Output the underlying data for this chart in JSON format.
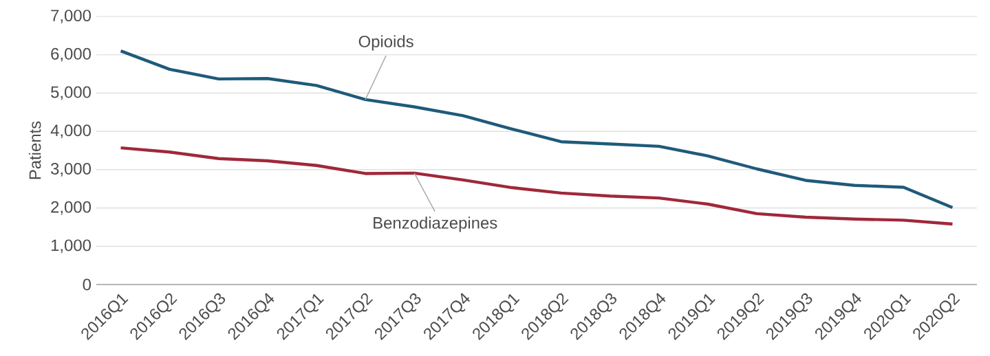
{
  "chart_data": {
    "type": "line",
    "ylabel": "Patients",
    "categories": [
      "2016Q1",
      "2016Q2",
      "2016Q3",
      "2016Q4",
      "2017Q1",
      "2017Q2",
      "2017Q3",
      "2017Q4",
      "2018Q1",
      "2018Q2",
      "2018Q3",
      "2018Q4",
      "2019Q1",
      "2019Q2",
      "2019Q3",
      "2019Q4",
      "2020Q1",
      "2020Q2"
    ],
    "series": [
      {
        "name": "Opioids",
        "color": "#1f5a7a",
        "values": [
          6100,
          5620,
          5370,
          5380,
          5200,
          4830,
          4640,
          4410,
          4060,
          3730,
          3670,
          3610,
          3360,
          3020,
          2720,
          2590,
          2540,
          2010
        ]
      },
      {
        "name": "Benzodiazepines",
        "color": "#a0283a",
        "values": [
          3570,
          3460,
          3290,
          3230,
          3110,
          2900,
          2910,
          2730,
          2530,
          2390,
          2310,
          2260,
          2100,
          1850,
          1760,
          1710,
          1680,
          1580
        ]
      }
    ],
    "ylim": [
      0,
      7000
    ],
    "yticks": [
      {
        "value": 0,
        "label": "0"
      },
      {
        "value": 1000,
        "label": "1,000"
      },
      {
        "value": 2000,
        "label": "2,000"
      },
      {
        "value": 3000,
        "label": "3,000"
      },
      {
        "value": 4000,
        "label": "4,000"
      },
      {
        "value": 5000,
        "label": "5,000"
      },
      {
        "value": 6000,
        "label": "6,000"
      },
      {
        "value": 7000,
        "label": "7,000"
      }
    ],
    "grid": "y",
    "legend": false,
    "marker": "none",
    "line_style": "solid"
  }
}
